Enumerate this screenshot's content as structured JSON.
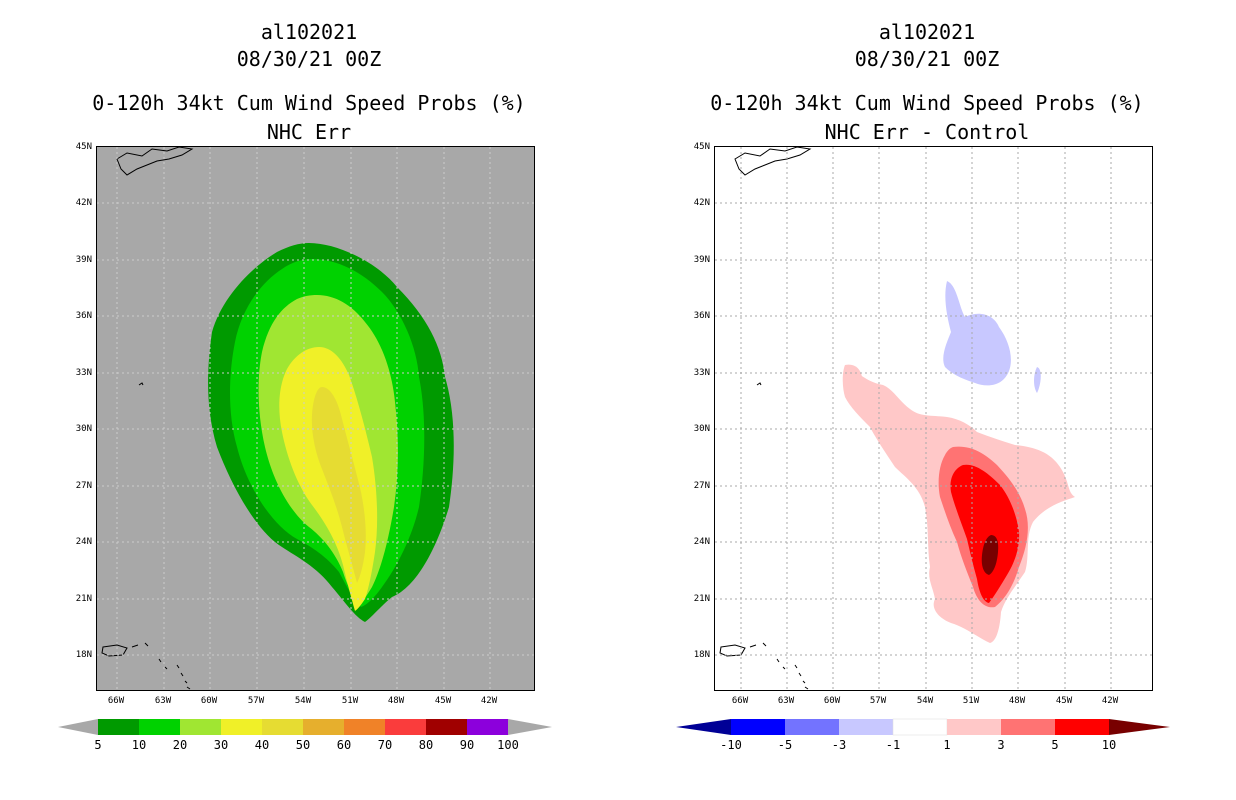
{
  "chart_data": [
    {
      "type": "heatmap",
      "storm_id": "al102021",
      "time": "08/30/21 00Z",
      "title": "0-120h 34kt Cum Wind Speed Probs (%)",
      "subtitle": "NHC Err",
      "lat_ticks": [
        "45N",
        "42N",
        "39N",
        "36N",
        "33N",
        "30N",
        "27N",
        "24N",
        "21N",
        "18N"
      ],
      "lon_ticks": [
        "66W",
        "63W",
        "60W",
        "57W",
        "54W",
        "51W",
        "48W",
        "45W",
        "42W"
      ],
      "background_color": "#a8a8a8",
      "colorbar": {
        "levels": [
          "5",
          "10",
          "20",
          "30",
          "40",
          "50",
          "60",
          "70",
          "80",
          "90",
          "100"
        ],
        "colors": [
          "#009a00",
          "#00d200",
          "#a0e632",
          "#f0f028",
          "#e6dc32",
          "#e6af2d",
          "#f08228",
          "#fa3c3c",
          "#a00000",
          "#8c00dc"
        ]
      },
      "contours_percent": [
        5,
        10,
        20,
        30,
        40
      ],
      "max_probability_center": {
        "lat": 24.0,
        "lon_west": 50.5
      }
    },
    {
      "type": "heatmap",
      "storm_id": "al102021",
      "time": "08/30/21 00Z",
      "title": "0-120h 34kt Cum Wind Speed Probs (%)",
      "subtitle": "NHC Err - Control",
      "lat_ticks": [
        "45N",
        "42N",
        "39N",
        "36N",
        "33N",
        "30N",
        "27N",
        "24N",
        "21N",
        "18N"
      ],
      "lon_ticks": [
        "66W",
        "63W",
        "60W",
        "57W",
        "54W",
        "51W",
        "48W",
        "45W",
        "42W"
      ],
      "background_color": "#ffffff",
      "grid": true,
      "colorbar": {
        "levels": [
          "-10",
          "-5",
          "-3",
          "-1",
          "1",
          "3",
          "5",
          "10"
        ],
        "colors": [
          "#000096",
          "#0000ff",
          "#7373ff",
          "#c8c8ff",
          "#ffffff",
          "#ffc8c8",
          "#ff7373",
          "#ff0000",
          "#780000"
        ]
      },
      "max_difference_center": {
        "lat": 23.5,
        "lon_west": 50.0
      }
    }
  ]
}
